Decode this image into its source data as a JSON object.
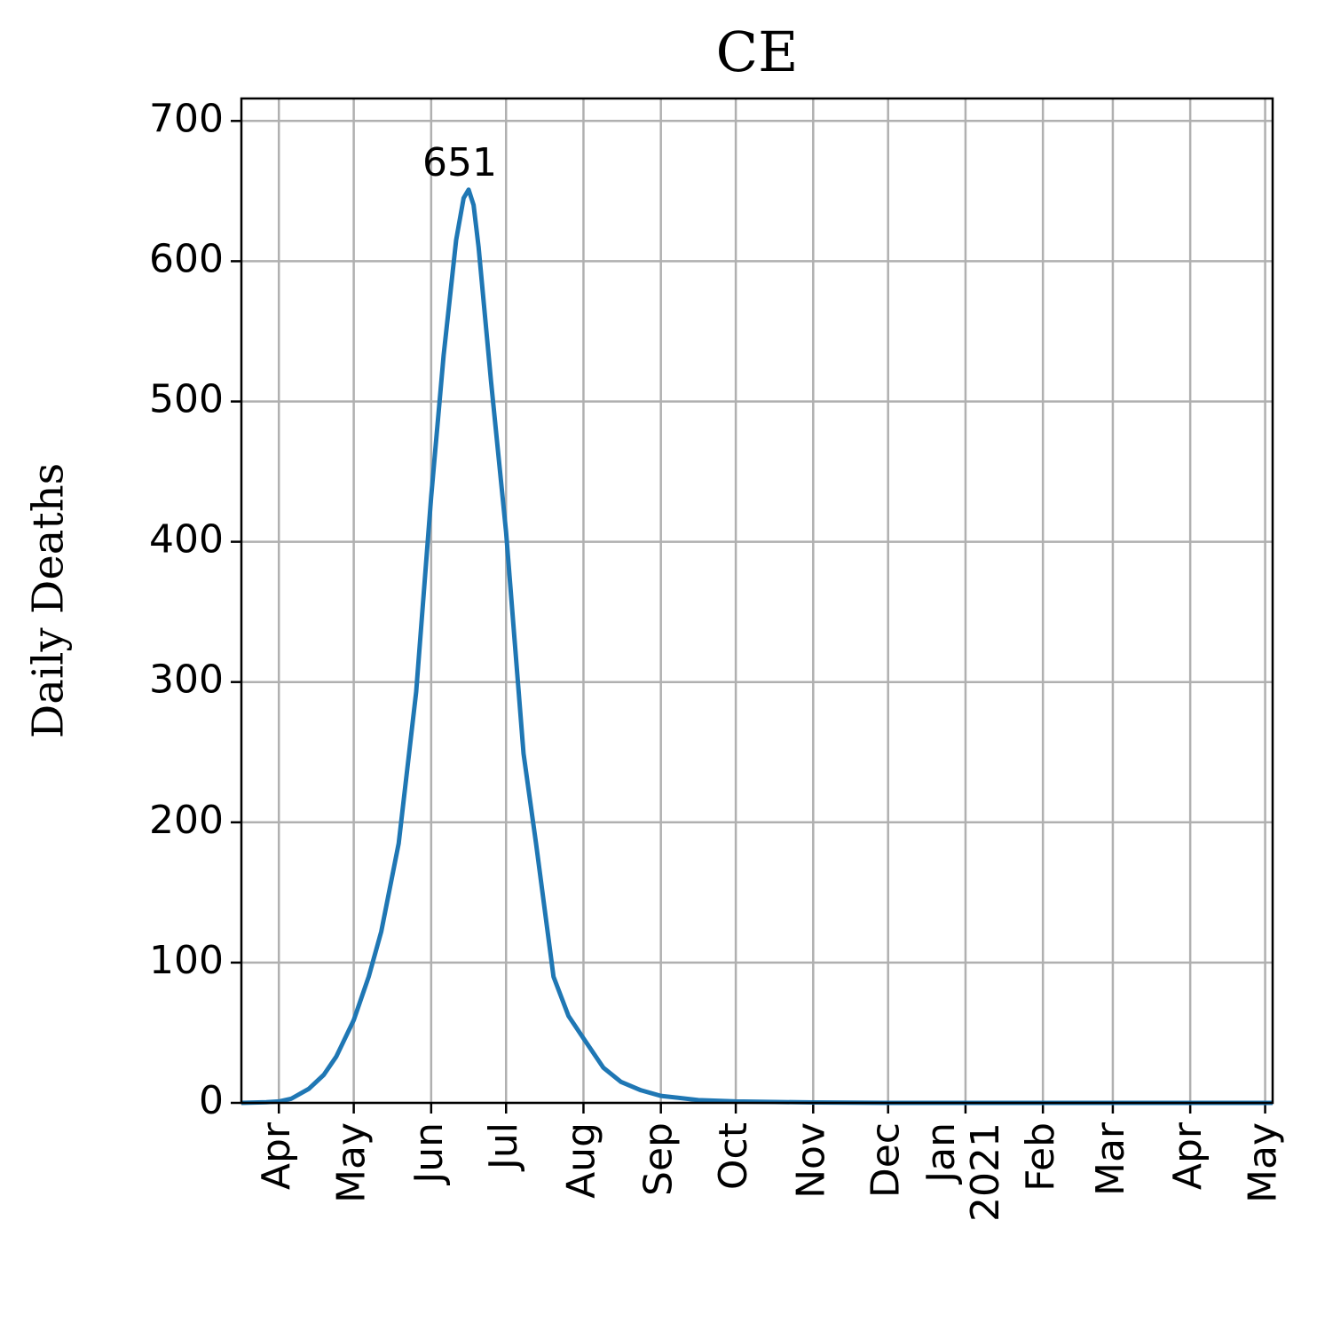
{
  "chart_data": {
    "type": "line",
    "title": "CE",
    "y_label": "Daily Deaths",
    "x": [
      -15,
      -5,
      0,
      5,
      12,
      18,
      23,
      30,
      36,
      41,
      48,
      55,
      61,
      66,
      71,
      74,
      76,
      78,
      80,
      85,
      91,
      98,
      103,
      110,
      116,
      122,
      130,
      137,
      145,
      153,
      168,
      183,
      214,
      244,
      275,
      306,
      334,
      365,
      398
    ],
    "values": [
      0,
      0.5,
      1,
      3,
      10,
      20,
      33,
      59,
      90,
      122,
      185,
      293,
      432,
      533,
      615,
      645,
      651,
      640,
      610,
      514,
      407,
      249,
      185,
      90,
      62,
      46,
      25,
      15,
      9,
      5,
      2,
      1,
      0.3,
      0,
      0,
      0,
      0,
      0,
      0
    ],
    "color": "#1f77b4",
    "xlim": [
      -15,
      398
    ],
    "ylim": [
      0,
      716
    ],
    "xticks": [
      {
        "value": 0,
        "label": "Apr"
      },
      {
        "value": 30,
        "label": "May"
      },
      {
        "value": 61,
        "label": "Jun"
      },
      {
        "value": 91,
        "label": "Jul"
      },
      {
        "value": 122,
        "label": "Aug"
      },
      {
        "value": 153,
        "label": "Sep"
      },
      {
        "value": 183,
        "label": "Oct"
      },
      {
        "value": 214,
        "label": "Nov"
      },
      {
        "value": 244,
        "label": "Dec"
      },
      {
        "value": 275,
        "label": "Jan\n2021"
      },
      {
        "value": 306,
        "label": "Feb"
      },
      {
        "value": 334,
        "label": "Mar"
      },
      {
        "value": 365,
        "label": "Apr"
      },
      {
        "value": 395,
        "label": "May"
      }
    ],
    "yticks": [
      0,
      100,
      200,
      300,
      400,
      500,
      600,
      700
    ],
    "grid": true
  }
}
